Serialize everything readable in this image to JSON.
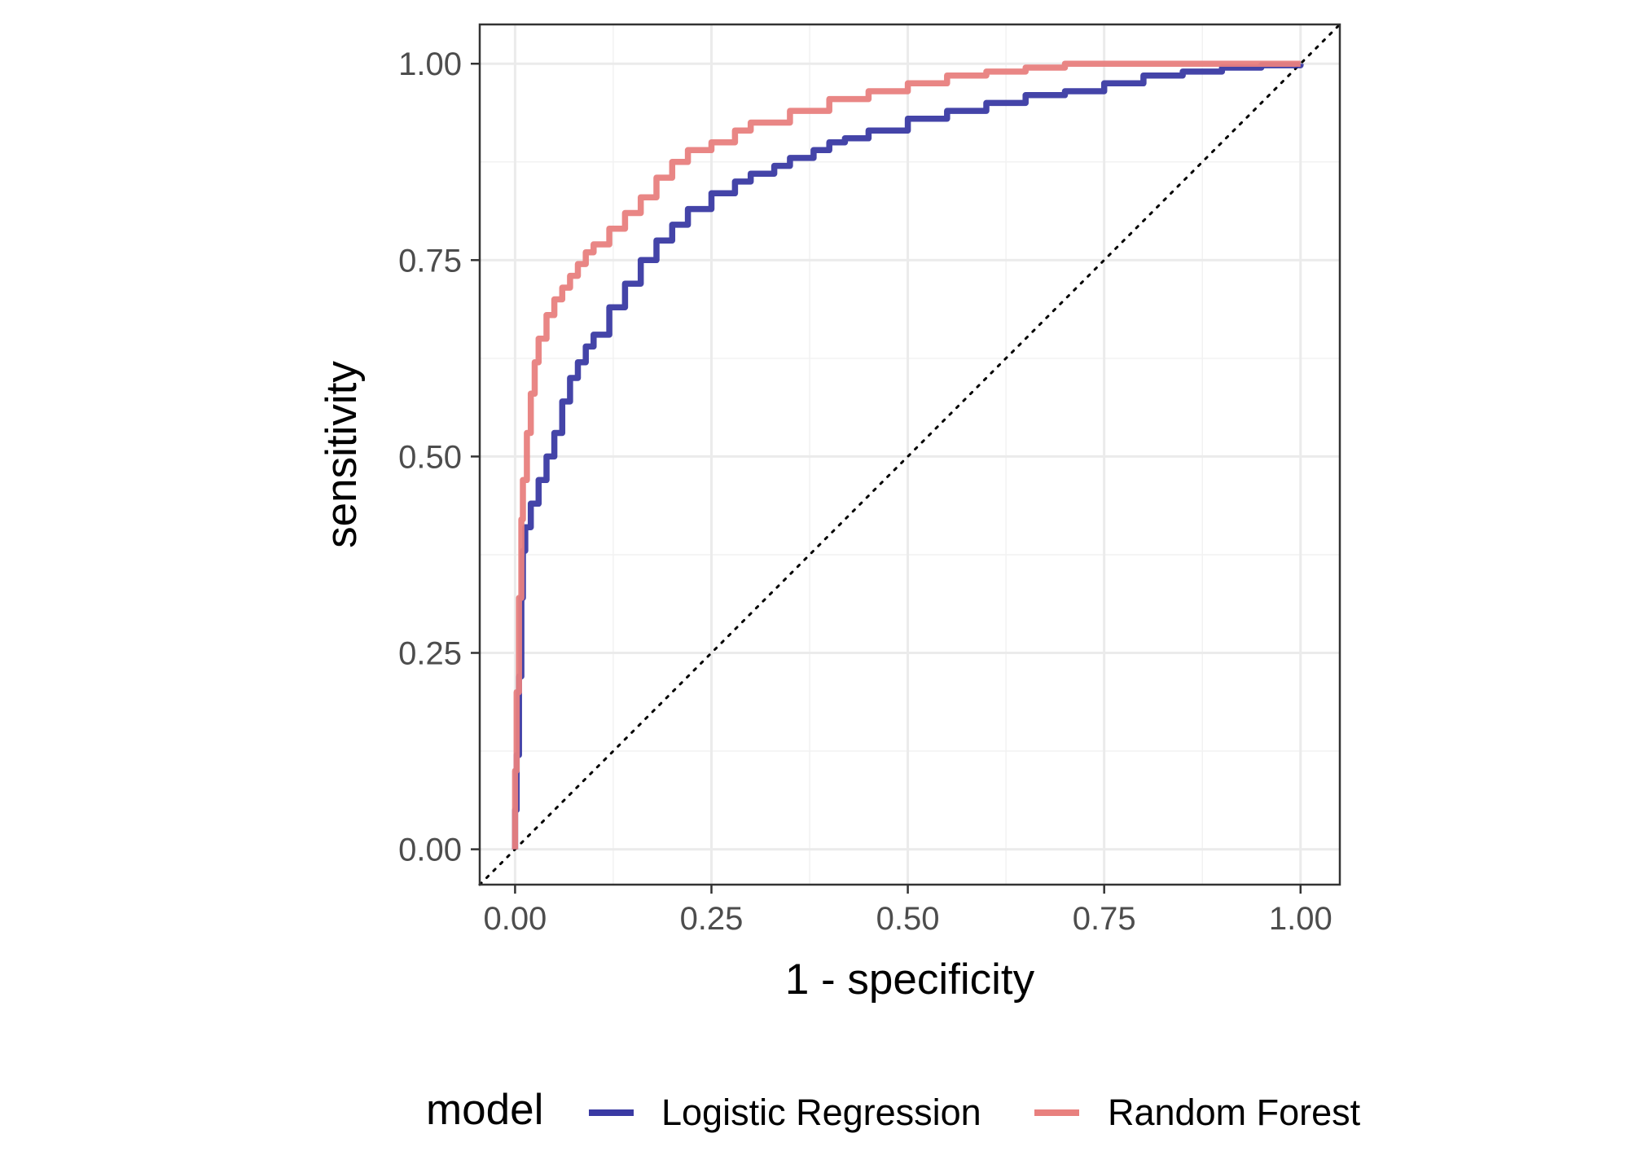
{
  "chart_data": {
    "type": "line",
    "title": "",
    "xlabel": "1 - specificity",
    "ylabel": "sensitivity",
    "xlim": [
      -0.045,
      1.05
    ],
    "ylim": [
      -0.045,
      1.05
    ],
    "x_ticks": [
      "0.00",
      "0.25",
      "0.50",
      "0.75",
      "1.00"
    ],
    "y_ticks": [
      "0.00",
      "0.25",
      "0.50",
      "0.75",
      "1.00"
    ],
    "grid": true,
    "legend": {
      "title": "model",
      "position": "bottom"
    },
    "reference_line": {
      "style": "dotted",
      "from": [
        0,
        0
      ],
      "to": [
        1,
        1
      ]
    },
    "series": [
      {
        "name": "Logistic Regression",
        "color": "#3a3aa3",
        "points": [
          [
            0,
            0
          ],
          [
            0,
            0.05
          ],
          [
            0.002,
            0.12
          ],
          [
            0.005,
            0.22
          ],
          [
            0.008,
            0.32
          ],
          [
            0.01,
            0.38
          ],
          [
            0.013,
            0.41
          ],
          [
            0.02,
            0.44
          ],
          [
            0.03,
            0.47
          ],
          [
            0.04,
            0.5
          ],
          [
            0.05,
            0.53
          ],
          [
            0.06,
            0.57
          ],
          [
            0.07,
            0.6
          ],
          [
            0.08,
            0.62
          ],
          [
            0.09,
            0.64
          ],
          [
            0.1,
            0.655
          ],
          [
            0.12,
            0.69
          ],
          [
            0.14,
            0.72
          ],
          [
            0.16,
            0.75
          ],
          [
            0.18,
            0.775
          ],
          [
            0.2,
            0.795
          ],
          [
            0.22,
            0.815
          ],
          [
            0.25,
            0.835
          ],
          [
            0.28,
            0.85
          ],
          [
            0.3,
            0.86
          ],
          [
            0.33,
            0.87
          ],
          [
            0.35,
            0.88
          ],
          [
            0.38,
            0.89
          ],
          [
            0.4,
            0.9
          ],
          [
            0.42,
            0.905
          ],
          [
            0.45,
            0.915
          ],
          [
            0.5,
            0.93
          ],
          [
            0.55,
            0.94
          ],
          [
            0.6,
            0.95
          ],
          [
            0.65,
            0.96
          ],
          [
            0.7,
            0.965
          ],
          [
            0.75,
            0.975
          ],
          [
            0.8,
            0.985
          ],
          [
            0.85,
            0.99
          ],
          [
            0.9,
            0.995
          ],
          [
            0.95,
            0.998
          ],
          [
            1,
            1
          ]
        ]
      },
      {
        "name": "Random Forest",
        "color": "#e8807e",
        "points": [
          [
            0,
            0
          ],
          [
            0,
            0.1
          ],
          [
            0.002,
            0.2
          ],
          [
            0.005,
            0.32
          ],
          [
            0.008,
            0.42
          ],
          [
            0.01,
            0.47
          ],
          [
            0.015,
            0.53
          ],
          [
            0.02,
            0.58
          ],
          [
            0.025,
            0.62
          ],
          [
            0.03,
            0.65
          ],
          [
            0.04,
            0.68
          ],
          [
            0.05,
            0.7
          ],
          [
            0.06,
            0.715
          ],
          [
            0.07,
            0.73
          ],
          [
            0.08,
            0.745
          ],
          [
            0.09,
            0.76
          ],
          [
            0.1,
            0.77
          ],
          [
            0.12,
            0.79
          ],
          [
            0.14,
            0.81
          ],
          [
            0.16,
            0.83
          ],
          [
            0.18,
            0.855
          ],
          [
            0.2,
            0.875
          ],
          [
            0.22,
            0.89
          ],
          [
            0.25,
            0.9
          ],
          [
            0.28,
            0.915
          ],
          [
            0.3,
            0.925
          ],
          [
            0.35,
            0.94
          ],
          [
            0.4,
            0.955
          ],
          [
            0.45,
            0.965
          ],
          [
            0.5,
            0.975
          ],
          [
            0.55,
            0.985
          ],
          [
            0.6,
            0.99
          ],
          [
            0.65,
            0.995
          ],
          [
            0.7,
            1
          ],
          [
            1,
            1
          ]
        ]
      }
    ]
  }
}
